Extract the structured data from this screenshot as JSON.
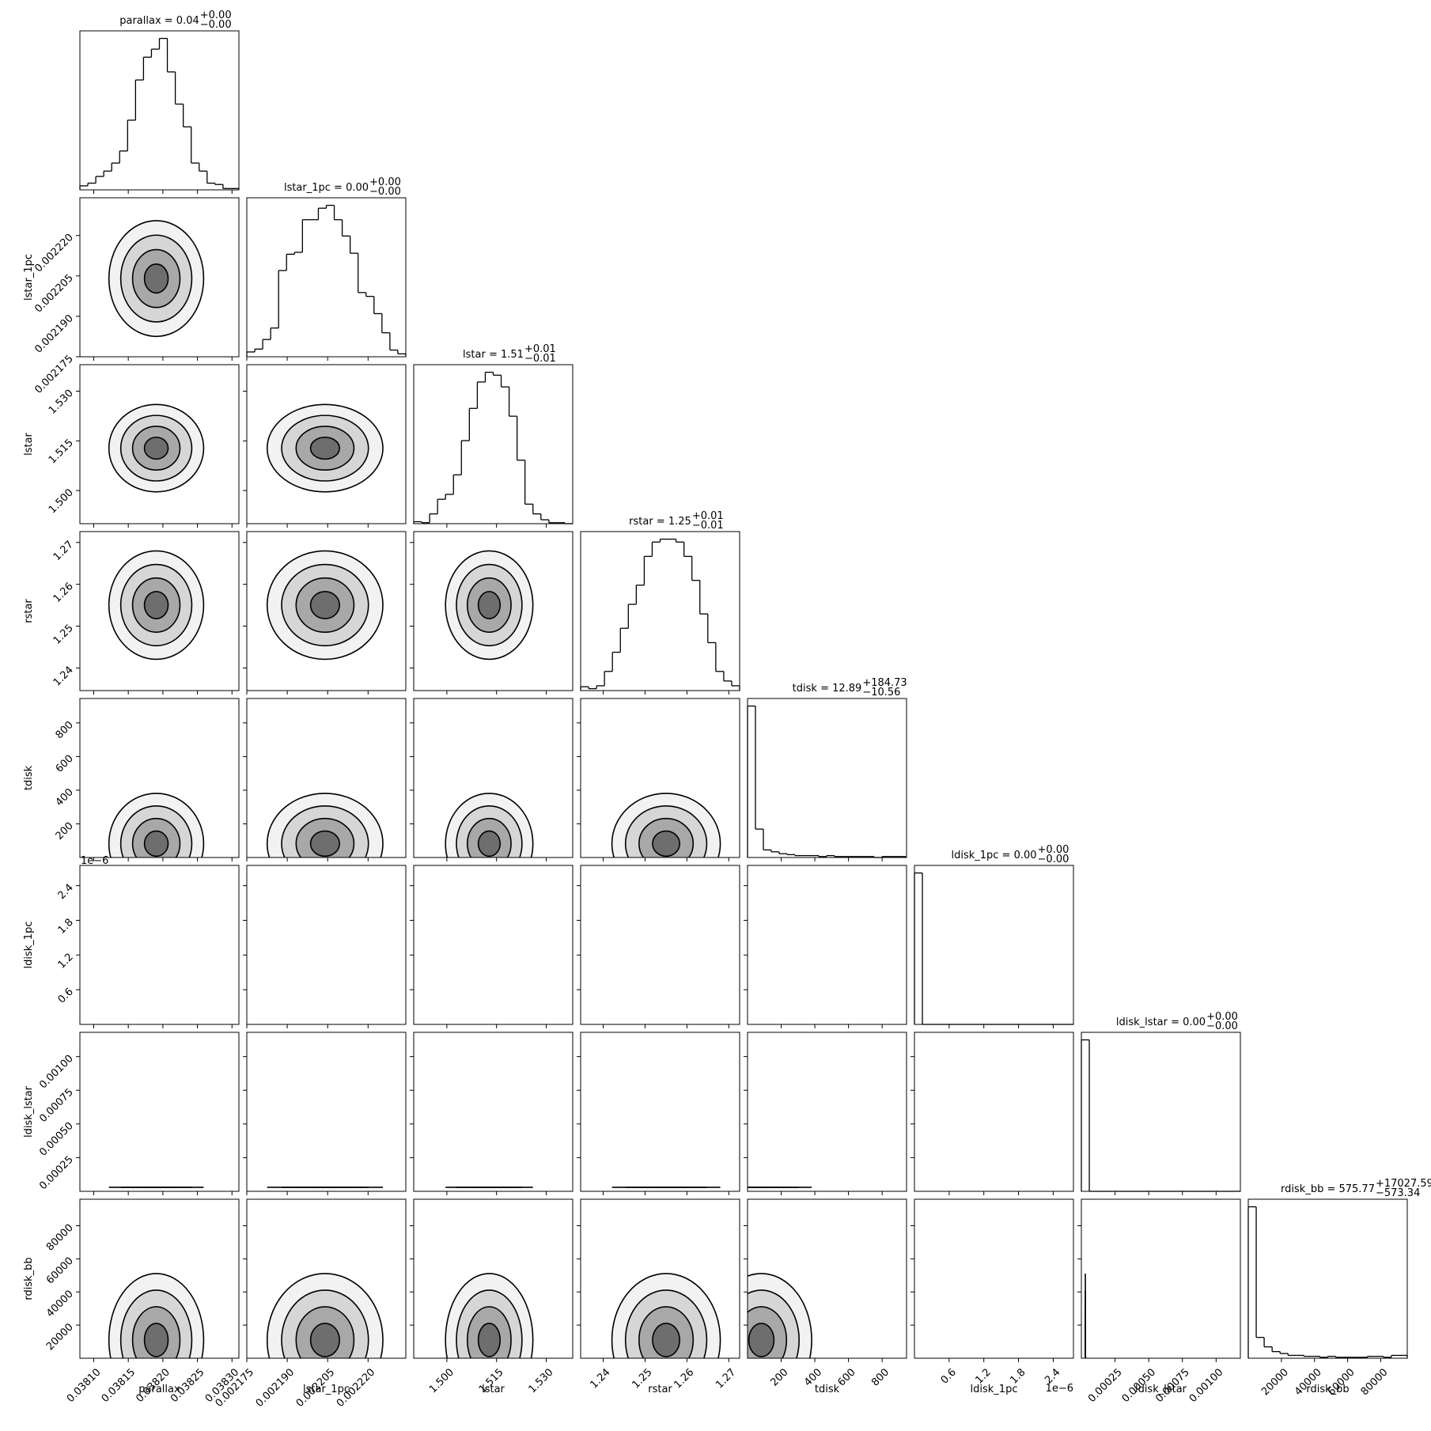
{
  "chart_data": {
    "type": "corner",
    "params": [
      {
        "name": "parallax",
        "title": {
          "text": "parallax = 0.04",
          "plus": "+0.00",
          "minus": "−0.00"
        },
        "lim": [
          0.03808,
          0.03831
        ],
        "ticks": [
          {
            "value": 0.0381,
            "label": "0.03810"
          },
          0.03815,
          {
            "value": 0.0382,
            "label": "0.03820"
          },
          0.03825,
          {
            "value": 0.0383,
            "label": "0.03830"
          }
        ],
        "bins": [
          0.03808,
          0.0380915,
          0.038103,
          0.0381145,
          0.038126,
          0.0381375,
          0.038149,
          0.0381605,
          0.038172,
          0.0381835,
          0.038195,
          0.0382065,
          0.038218,
          0.0382295,
          0.038241,
          0.0382525,
          0.038264,
          0.0382755,
          0.038287,
          0.0382985,
          0.03831
        ],
        "counts": [
          3,
          5,
          10,
          14,
          20,
          29,
          52,
          82,
          99,
          105,
          113,
          88,
          64,
          47,
          20,
          14,
          5,
          4,
          1,
          1
        ]
      },
      {
        "name": "lstar_1pc",
        "title": {
          "text": "lstar_1pc = 0.00",
          "plus": "+0.00",
          "minus": "−0.00"
        },
        "lim": [
          0.002175,
          0.002234
        ],
        "ticks": [
          0.002175,
          {
            "value": 0.00219,
            "label": "0.002190"
          },
          0.002205,
          {
            "value": 0.00222,
            "label": "0.002220"
          },
          0.002235
        ],
        "bins": [
          0.002175,
          0.00217795,
          0.0021809,
          0.00218385,
          0.0021868,
          0.00218975,
          0.0021927,
          0.00219565,
          0.0021986,
          0.00220155,
          0.0022045,
          0.00220745,
          0.0022104,
          0.00221335,
          0.0022163,
          0.00221925,
          0.0022222,
          0.00222515,
          0.0022281,
          0.00223105,
          0.002234
        ],
        "counts": [
          5,
          8,
          18,
          30,
          90,
          107,
          109,
          143,
          143,
          155,
          158,
          143,
          126,
          108,
          67,
          63,
          45,
          25,
          7,
          3
        ]
      },
      {
        "name": "lstar",
        "title": {
          "text": "lstar = 1.51",
          "plus": "+0.01",
          "minus": "−0.01"
        },
        "lim": [
          1.49,
          1.538
        ],
        "ticks": [
          {
            "value": 1.5,
            "label": "1.500"
          },
          1.515,
          {
            "value": 1.53,
            "label": "1.530"
          }
        ],
        "bins": [
          1.49,
          1.4924,
          1.4948,
          1.4972,
          1.4996,
          1.502,
          1.5044,
          1.5068,
          1.5092,
          1.5116,
          1.514,
          1.5164,
          1.5188,
          1.5212,
          1.5236,
          1.526,
          1.5284,
          1.5308,
          1.5332,
          1.5356,
          1.538
        ],
        "counts": [
          2,
          1,
          10,
          25,
          30,
          50,
          85,
          118,
          145,
          155,
          152,
          140,
          110,
          65,
          20,
          10,
          4,
          1,
          1,
          0
        ]
      },
      {
        "name": "rstar",
        "title": {
          "text": "rstar = 1.25",
          "plus": "+0.01",
          "minus": "−0.01"
        },
        "lim": [
          1.2346,
          1.2726
        ],
        "ticks": [
          1.24,
          1.25,
          1.26,
          1.27
        ],
        "bins": [
          1.2346,
          1.2365,
          1.2384,
          1.2403,
          1.2422,
          1.2441,
          1.246,
          1.2479,
          1.2498,
          1.2517,
          1.2536,
          1.2555,
          1.2574,
          1.2593,
          1.2612,
          1.2631,
          1.265,
          1.2669,
          1.2688,
          1.2707,
          1.2726
        ],
        "counts": [
          4,
          2,
          5,
          20,
          40,
          65,
          90,
          110,
          140,
          155,
          158,
          158,
          155,
          140,
          115,
          80,
          50,
          20,
          10,
          5
        ]
      },
      {
        "name": "tdisk",
        "title": {
          "text": "tdisk = 12.89",
          "plus": "+184.73",
          "minus": "−10.56"
        },
        "lim": [
          0,
          945
        ],
        "ticks": [
          200,
          400,
          600,
          800
        ],
        "bins": [
          0,
          47,
          94,
          141,
          188,
          235,
          282,
          329,
          376,
          423,
          470,
          517,
          564,
          611,
          658,
          705,
          752,
          799,
          846,
          893,
          940
        ],
        "counts": [
          160,
          30,
          8,
          6,
          4,
          3,
          2,
          2,
          2,
          1,
          2,
          1,
          1,
          1,
          1,
          1,
          0,
          1,
          1,
          1
        ]
      },
      {
        "name": "ldisk_1pc",
        "title": {
          "text": "ldisk_1pc = 0.00",
          "plus": "+0.00",
          "minus": "−0.00"
        },
        "offset_label": "1e−6",
        "lim": [
          0,
          2.75e-06
        ],
        "ticks": [
          {
            "value": 6e-07,
            "label": "0.6"
          },
          {
            "value": 1.2e-06,
            "label": "1.2"
          },
          {
            "value": 1.8e-06,
            "label": "1.8"
          },
          {
            "value": 2.4e-06,
            "label": "2.4"
          }
        ],
        "bins": [
          0,
          1.375e-07,
          2.75e-07,
          4.125e-07,
          5.5e-07,
          6.875e-07,
          8.25e-07,
          9.625e-07,
          1.1e-06,
          1.2375e-06,
          1.375e-06,
          1.5125e-06,
          1.65e-06,
          1.7875e-06,
          1.925e-06,
          2.0625e-06,
          2.2e-06,
          2.3375e-06,
          2.475e-06,
          2.6125e-06,
          2.75e-06
        ],
        "counts": [
          165,
          0,
          0,
          0,
          0,
          0,
          0,
          0,
          0,
          0,
          0,
          0,
          0,
          0,
          0,
          0,
          0,
          0,
          0,
          0
        ]
      },
      {
        "name": "ldisk_lstar",
        "title": {
          "text": "ldisk_lstar = 0.00",
          "plus": "+0.00",
          "minus": "−0.00"
        },
        "lim": [
          0,
          0.00118
        ],
        "ticks": [
          0.00025,
          {
            "value": 0.0005,
            "label": "0.00050"
          },
          0.00075,
          {
            "value": 0.001,
            "label": "0.00100"
          }
        ],
        "bins": [
          0,
          5.9e-05,
          0.000118,
          0.000177,
          0.000236,
          0.000295,
          0.000354,
          0.000413,
          0.000472,
          0.000531,
          0.00059,
          0.000649,
          0.000708,
          0.000767,
          0.000826,
          0.000885,
          0.000944,
          0.001003,
          0.001062,
          0.001121,
          0.00118
        ],
        "counts": [
          160,
          0,
          0,
          0,
          0,
          0,
          0,
          0,
          0,
          0,
          0,
          0,
          0,
          0,
          0,
          0,
          0,
          0,
          0,
          0
        ]
      },
      {
        "name": "rdisk_bb",
        "title": {
          "text": "rdisk_bb = 575.77",
          "plus": "+17027.59",
          "minus": "−573.34"
        },
        "lim": [
          0,
          96000
        ],
        "ticks": [
          20000,
          40000,
          60000,
          80000
        ],
        "bins": [
          0,
          4800,
          9600,
          14400,
          19200,
          24000,
          28800,
          33600,
          38400,
          43200,
          48000,
          52800,
          57600,
          62400,
          67200,
          72000,
          76800,
          81600,
          86400,
          91200,
          96000
        ],
        "counts": [
          160,
          22,
          12,
          7,
          5,
          3,
          3,
          2,
          2,
          1,
          2,
          1,
          1,
          1,
          1,
          2,
          2,
          1,
          3,
          3
        ]
      }
    ]
  }
}
